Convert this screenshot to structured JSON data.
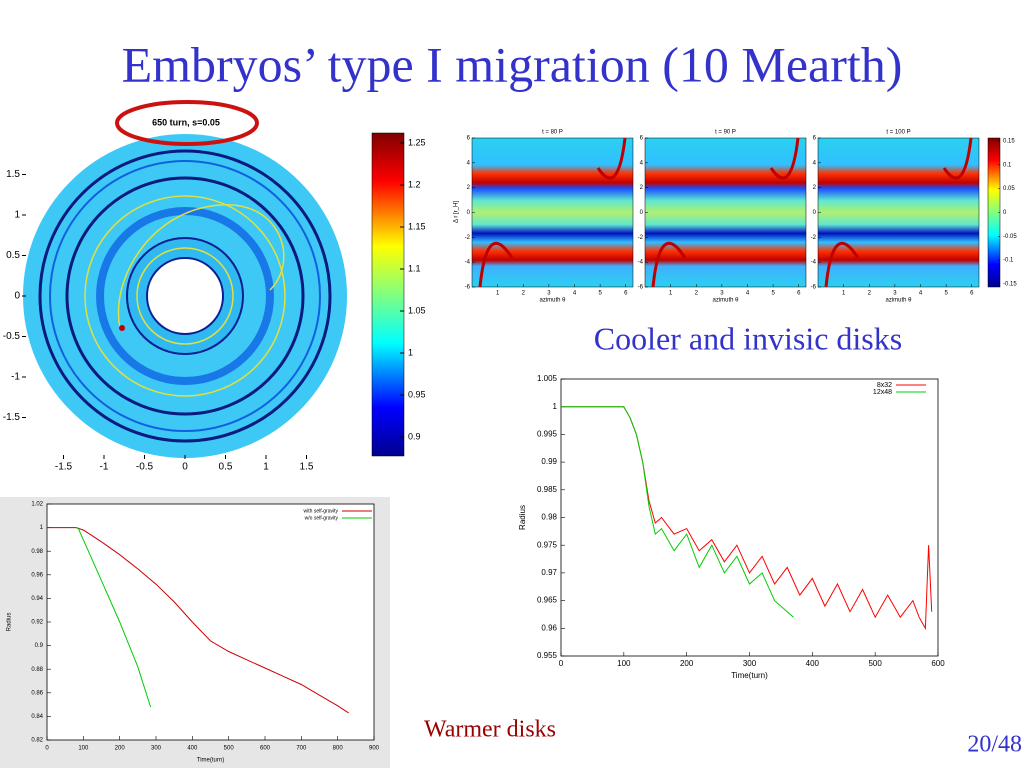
{
  "title": "Embryos’ type I migration (10 Mearth)",
  "disk_plot": {
    "label": "650 turn, s=0.05",
    "xticks": [
      -1.5,
      -1,
      -0.5,
      0,
      0.5,
      1,
      1.5
    ],
    "yticks": [
      1.5,
      1,
      0.5,
      0,
      -0.5,
      -1,
      -1.5
    ],
    "colorbar_ticks": [
      1.25,
      1.2,
      1.15,
      1.1,
      1.05,
      1,
      0.95,
      0.9
    ]
  },
  "heatmaps": {
    "panels": [
      {
        "title": "t = 80 P"
      },
      {
        "title": "t = 90 P"
      },
      {
        "title": "t = 100 P"
      }
    ],
    "xlabel": "azimuth θ",
    "ylabel": "Δ r [r_H]",
    "xticks": [
      1,
      2,
      3,
      4,
      5,
      6
    ],
    "yticks": [
      6,
      4,
      2,
      0,
      -2,
      -4,
      -6
    ],
    "colorbar_ticks": [
      0.15,
      0.1,
      0.05,
      0,
      -0.05,
      -0.1,
      -0.15
    ]
  },
  "cooler_caption": "Cooler and invisic disks",
  "cooler_chart": {
    "type": "line",
    "xlabel": "Time(turn)",
    "ylabel": "Radius",
    "xlim": [
      0,
      600
    ],
    "ylim": [
      0.955,
      1.005
    ],
    "xticks": [
      0,
      100,
      200,
      300,
      400,
      500,
      600
    ],
    "yticks": [
      1.005,
      1,
      0.995,
      0.99,
      0.985,
      0.98,
      0.975,
      0.97,
      0.965,
      0.96,
      0.955
    ],
    "series": [
      {
        "name": "8x32",
        "color": "#ff0000",
        "x": [
          0,
          95,
          100,
          110,
          120,
          130,
          140,
          150,
          160,
          180,
          200,
          220,
          240,
          260,
          280,
          300,
          320,
          340,
          360,
          380,
          400,
          420,
          440,
          460,
          480,
          500,
          520,
          540,
          560,
          570,
          580,
          585,
          590
        ],
        "values": [
          1,
          1,
          1,
          0.998,
          0.995,
          0.99,
          0.983,
          0.979,
          0.98,
          0.977,
          0.978,
          0.974,
          0.976,
          0.972,
          0.975,
          0.97,
          0.973,
          0.968,
          0.971,
          0.966,
          0.969,
          0.964,
          0.968,
          0.963,
          0.967,
          0.962,
          0.966,
          0.962,
          0.965,
          0.962,
          0.96,
          0.975,
          0.963
        ]
      },
      {
        "name": "12x48",
        "color": "#00cc00",
        "x": [
          0,
          95,
          100,
          110,
          120,
          130,
          140,
          150,
          160,
          180,
          200,
          220,
          240,
          260,
          280,
          300,
          320,
          340,
          360,
          370
        ],
        "values": [
          1,
          1,
          1,
          0.998,
          0.995,
          0.99,
          0.982,
          0.977,
          0.978,
          0.974,
          0.977,
          0.971,
          0.975,
          0.97,
          0.973,
          0.968,
          0.97,
          0.965,
          0.963,
          0.962
        ]
      }
    ]
  },
  "warmer_caption": "Warmer disks",
  "warmer_chart": {
    "type": "line",
    "xlabel": "Time(turn)",
    "ylabel": "Radius",
    "xlim": [
      0,
      900
    ],
    "ylim": [
      0.82,
      1.02
    ],
    "xticks": [
      0,
      100,
      200,
      300,
      400,
      500,
      600,
      700,
      800,
      900
    ],
    "yticks": [
      1.02,
      1,
      0.98,
      0.96,
      0.94,
      0.92,
      0.9,
      0.88,
      0.86,
      0.84,
      0.82
    ],
    "series": [
      {
        "name": "with self-gravity",
        "color": "#cc0000",
        "x": [
          0,
          80,
          100,
          150,
          200,
          250,
          300,
          350,
          400,
          450,
          500,
          550,
          600,
          650,
          700,
          750,
          800,
          830
        ],
        "values": [
          1,
          1,
          0.998,
          0.988,
          0.977,
          0.965,
          0.952,
          0.937,
          0.92,
          0.904,
          0.895,
          0.888,
          0.881,
          0.874,
          0.867,
          0.858,
          0.849,
          0.843
        ]
      },
      {
        "name": "w/o self-gravity",
        "color": "#00cc00",
        "x": [
          85,
          150,
          200,
          250,
          285
        ],
        "values": [
          1,
          0.955,
          0.92,
          0.882,
          0.848
        ]
      }
    ]
  },
  "page_number": "20/48"
}
